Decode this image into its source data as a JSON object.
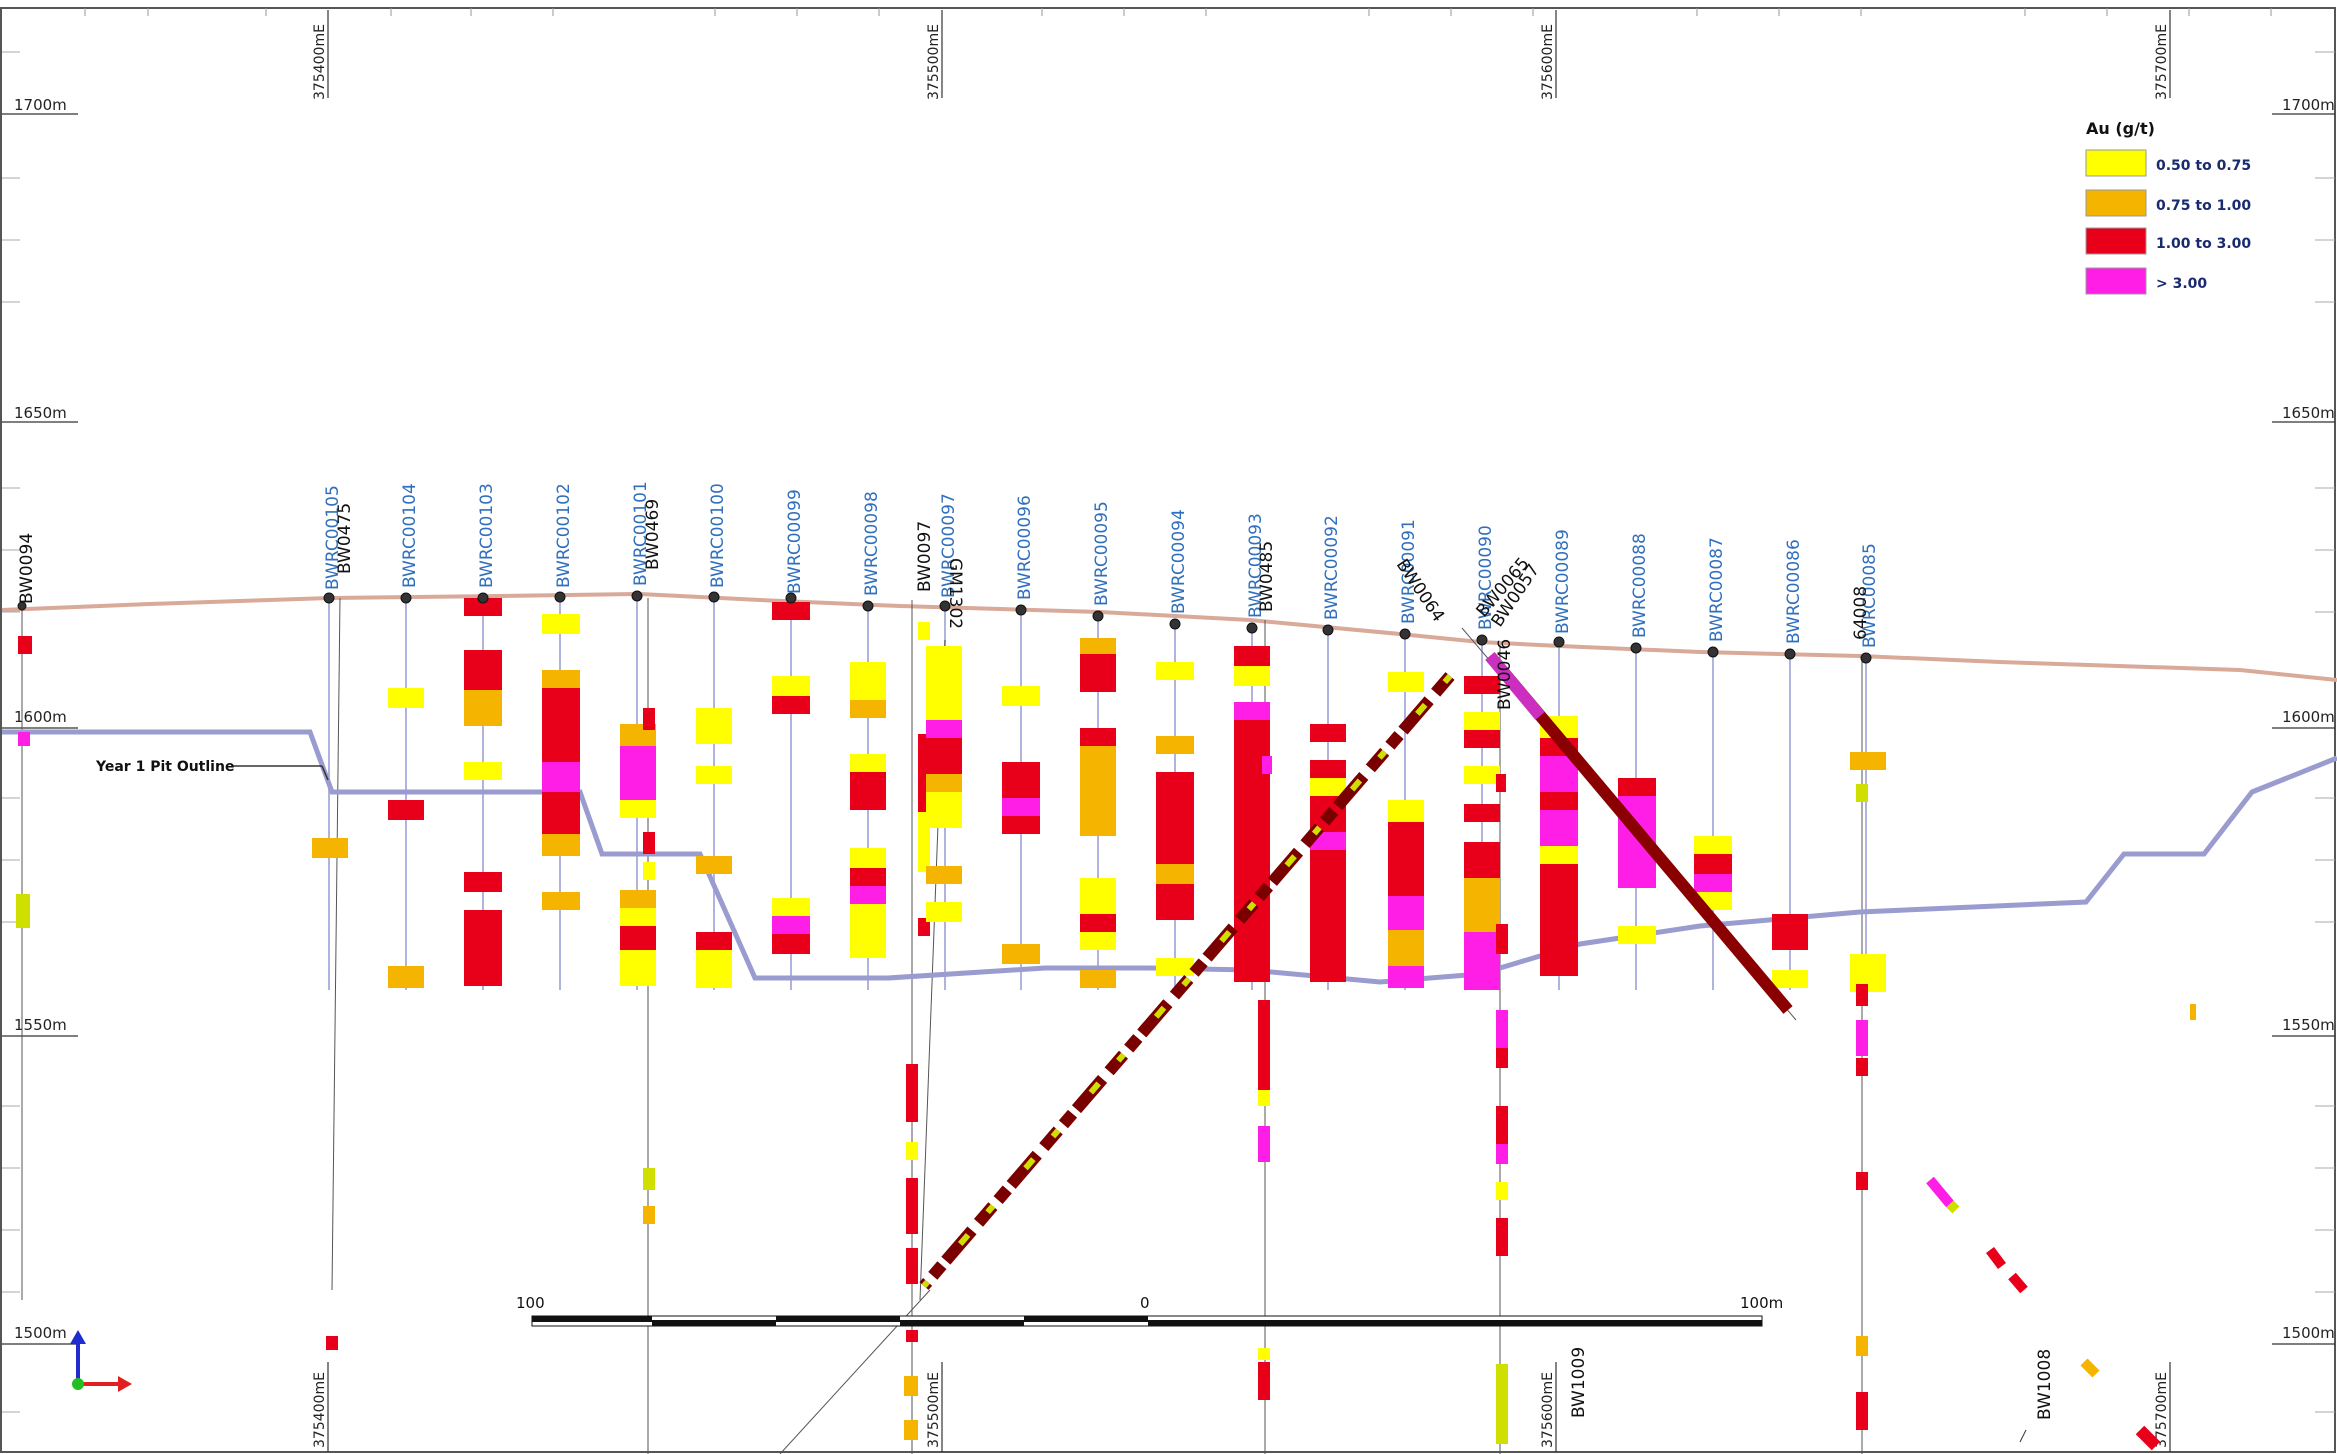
{
  "section": {
    "easting_labels": [
      "375400mE",
      "375500mE",
      "375600mE",
      "375700mE"
    ],
    "elevation_labels": [
      "1700m",
      "1650m",
      "1600m",
      "1550m",
      "1500m"
    ],
    "pit_outline_label": "Year 1 Pit Outline"
  },
  "legend": {
    "title": "Au (g/t)",
    "items": [
      {
        "label": "0.50 to 0.75",
        "color": "#ffff00"
      },
      {
        "label": "0.75 to 1.00",
        "color": "#f5b400"
      },
      {
        "label": "1.00 to 3.00",
        "color": "#e8001b"
      },
      {
        "label": "> 3.00",
        "color": "#ff1ee6"
      }
    ]
  },
  "colors": {
    "topo_line": "#d9a99a",
    "pit_line": "#9a9bcf",
    "hole_trace": "#b0b2e0",
    "blue_label": "#2f6fbe",
    "axis_icon_blue": "#1f2ccf",
    "axis_icon_red": "#e02020",
    "axis_icon_green": "#20c020"
  },
  "blue_holes": [
    "BWRC00105",
    "BWRC00104",
    "BWRC00103",
    "BWRC00102",
    "BWRC00101",
    "BWRC00100",
    "BWRC00099",
    "BWRC00098",
    "BWRC00097",
    "BWRC00096",
    "BWRC00095",
    "BWRC00094",
    "BWRC00093",
    "BWRC00092",
    "BWRC00091",
    "BWRC00090",
    "BWRC00089",
    "BWRC00088",
    "BWRC00087",
    "BWRC00086",
    "BWRC00085"
  ],
  "black_holes": [
    "BW0094",
    "BW0475",
    "BW0469",
    "BW0097",
    "GM1302",
    "BW0485",
    "BW0064",
    "BW0065",
    "BW0057",
    "BW0046",
    "64008",
    "BW1009",
    "BW1008"
  ],
  "scale_bar": {
    "left_label": "100",
    "mid_label": "0",
    "right_label": "100m"
  }
}
